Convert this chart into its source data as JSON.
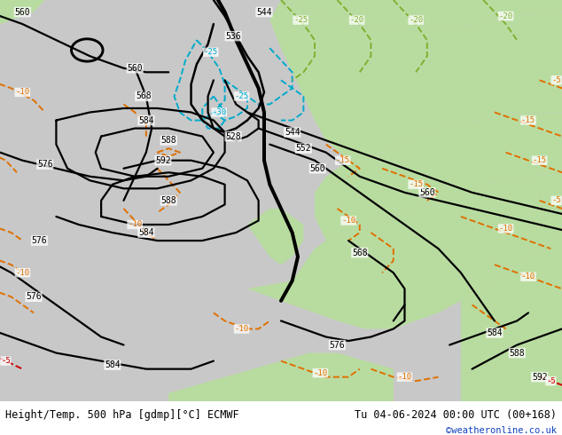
{
  "title_left": "Height/Temp. 500 hPa [gdmp][°C] ECMWF",
  "title_right": "Tu 04-06-2024 00:00 UTC (00+168)",
  "watermark": "©weatheronline.co.uk",
  "bg_color": "#c8c8c8",
  "green_color": "#b8dca0",
  "sea_color": "#c8c8c8",
  "black": "#000000",
  "orange": "#e07000",
  "cyan": "#00aacc",
  "green_dash": "#80b030",
  "red": "#cc0000",
  "title_color": "#000000",
  "watermark_color": "#1040c0",
  "font_size_title": 8.5,
  "fig_width": 6.34,
  "fig_height": 4.9,
  "dpi": 100
}
